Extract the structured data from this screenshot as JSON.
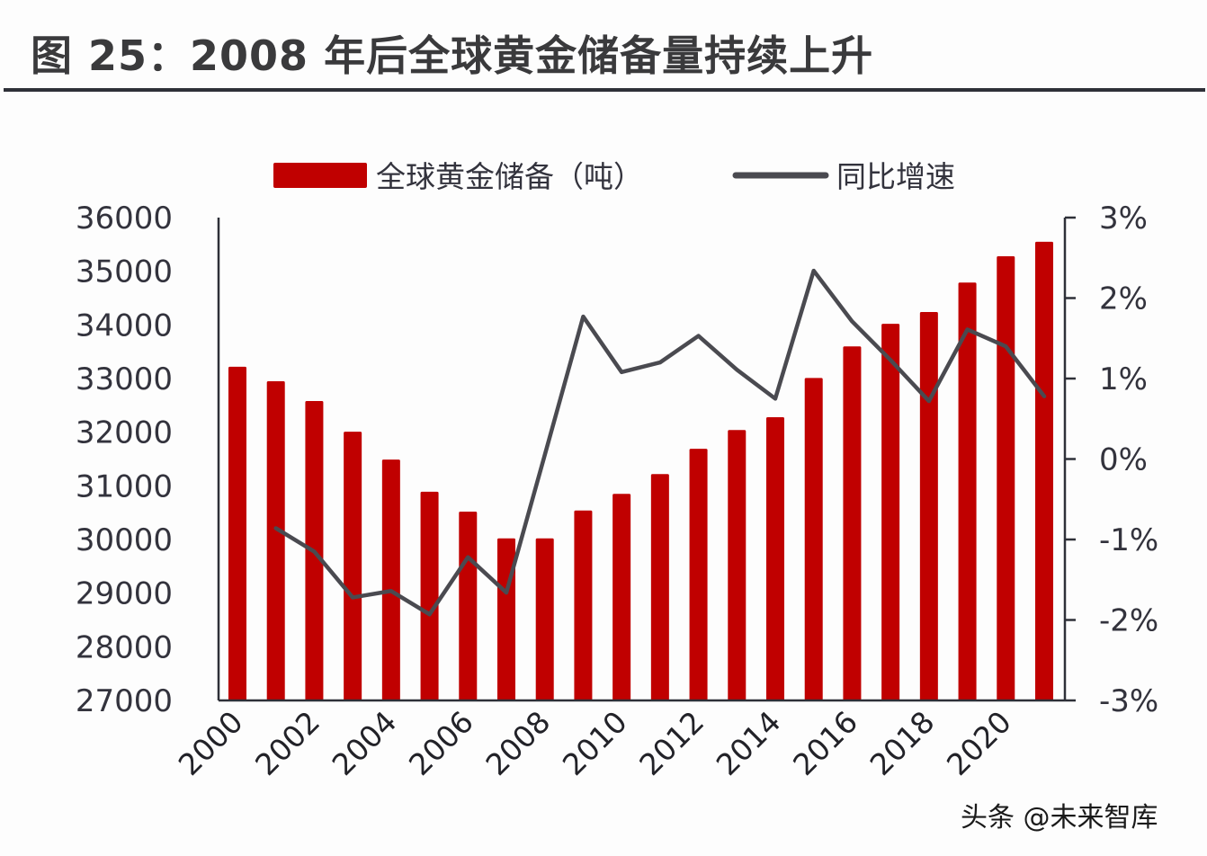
{
  "title": "图 25：2008 年后全球黄金储备量持续上升",
  "watermark": "头条 @未来智库",
  "colors": {
    "bar": "#c00000",
    "line": "#4a4a50",
    "axis": "#2e3038",
    "text": "#33333d"
  },
  "chart_data": {
    "type": "bar+line",
    "title": "图 25：2008 年后全球黄金储备量持续上升",
    "categories": [
      "2000",
      "2001",
      "2002",
      "2003",
      "2004",
      "2005",
      "2006",
      "2007",
      "2008",
      "2009",
      "2010",
      "2011",
      "2012",
      "2013",
      "2014",
      "2015",
      "2016",
      "2017",
      "2018",
      "2019",
      "2020",
      "2021"
    ],
    "x_tick_labels": [
      "2000",
      "2002",
      "2004",
      "2006",
      "2008",
      "2010",
      "2012",
      "2014",
      "2016",
      "2018",
      "2020"
    ],
    "series": [
      {
        "name": "全球黄金储备（吨）",
        "type": "bar",
        "axis": "left",
        "values": [
          33220,
          32950,
          32580,
          32010,
          31490,
          30890,
          30520,
          30020,
          30020,
          30540,
          30850,
          31220,
          31690,
          32040,
          32280,
          33010,
          33600,
          34020,
          34240,
          34790,
          35280,
          35550
        ]
      },
      {
        "name": "同比增速",
        "type": "line",
        "axis": "right",
        "unit": "%",
        "values": [
          null,
          -0.86,
          -1.15,
          -1.72,
          -1.64,
          -1.93,
          -1.22,
          -1.66,
          0.05,
          1.77,
          1.08,
          1.2,
          1.53,
          1.11,
          0.75,
          2.34,
          1.71,
          1.23,
          0.72,
          1.61,
          1.4,
          0.78
        ]
      }
    ],
    "y_left": {
      "range": [
        27000,
        36000
      ],
      "ticks": [
        "36000",
        "35000",
        "34000",
        "33000",
        "32000",
        "31000",
        "30000",
        "29000",
        "28000",
        "27000"
      ],
      "label": ""
    },
    "y_right": {
      "range": [
        -3,
        3
      ],
      "ticks": [
        "3%",
        "2%",
        "1%",
        "0%",
        "-1%",
        "-2%",
        "-3%"
      ],
      "label": ""
    },
    "xlabel": "",
    "legend": {
      "position": "top",
      "entries": [
        "全球黄金储备（吨）",
        "同比增速"
      ]
    },
    "grid": false
  }
}
